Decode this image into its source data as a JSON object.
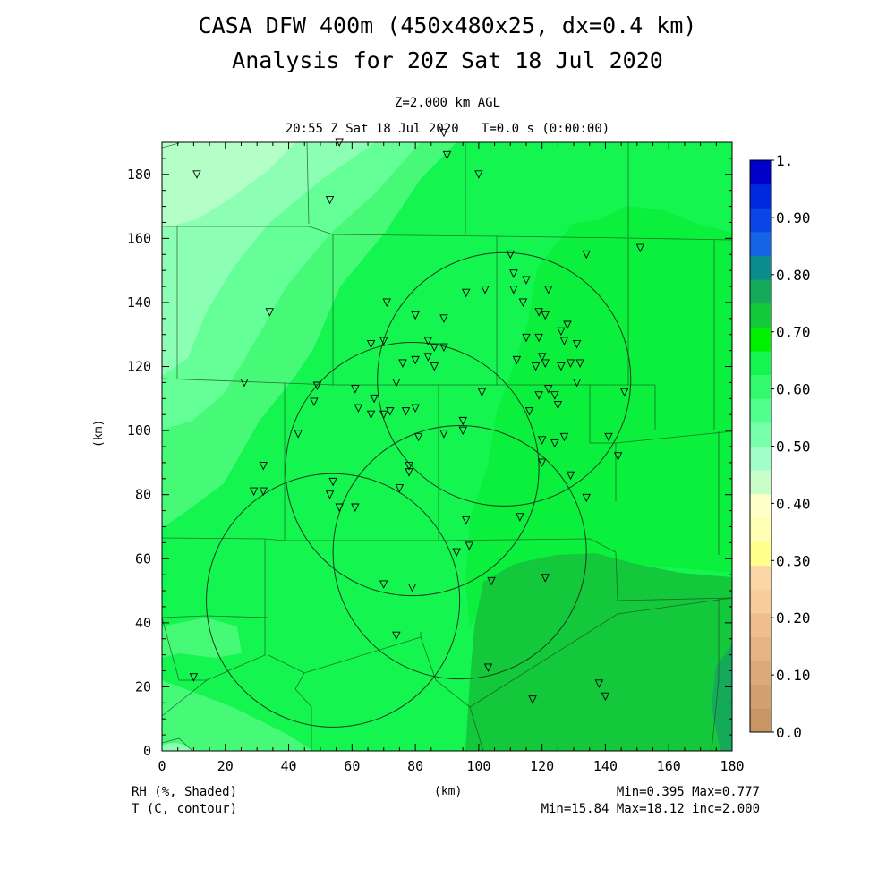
{
  "header": {
    "title_line1": "CASA DFW 400m (450x480x25, dx=0.4 km)",
    "title_line2": "Analysis for 20Z Sat 18 Jul 2020",
    "level": "Z=2.000 km AGL",
    "time": "20:55 Z Sat 18 Jul 2020   T=0.0 s (0:00:00)"
  },
  "axes": {
    "x_label": "(km)",
    "y_label": "(km)",
    "x_ticks": [
      "0",
      "20",
      "40",
      "60",
      "80",
      "100",
      "120",
      "140",
      "160",
      "180"
    ],
    "y_ticks": [
      "0",
      "20",
      "40",
      "60",
      "80",
      "100",
      "120",
      "140",
      "160",
      "180"
    ],
    "x_range": [
      0,
      180
    ],
    "y_range": [
      0,
      190
    ]
  },
  "colorbar": {
    "labels": [
      "1.",
      "0.90",
      "0.80",
      "0.70",
      "0.60",
      "0.50",
      "0.40",
      "0.30",
      "0.20",
      "0.10",
      "0.0"
    ],
    "colors": [
      "#c89664",
      "#d2a06e",
      "#dcaa78",
      "#e6b482",
      "#f0be8c",
      "#f8cd9b",
      "#fbd7a5",
      "#ffff8c",
      "#ffffb4",
      "#ffffc8",
      "#c8ffc8",
      "#a0ffc8",
      "#78ffaa",
      "#50ff8c",
      "#32fa6e",
      "#14f550",
      "#00f000",
      "#14c83c",
      "#14aa5a",
      "#0a8c8c",
      "#1464e6",
      "#0a46e6",
      "#0028dc",
      "#0000c8"
    ]
  },
  "footer": {
    "left1": "RH (%, Shaded)",
    "left2": "T (C, contour)",
    "center": "(km)",
    "right1": "Min=0.395 Max=0.777",
    "right2": "Min=15.84 Max=18.12 inc=2.000"
  },
  "field_colors": {
    "rh_040": "#b4ffc8",
    "rh_045": "#8cffb4",
    "rh_050": "#64ff96",
    "rh_055": "#46fa78",
    "rh_060": "#14f550",
    "rh_065": "#0af03c",
    "rh_070": "#14c83c",
    "rh_075": "#14aa5a"
  },
  "radar_circles_km": [
    {
      "cx": 54,
      "cy": 47,
      "r": 40
    },
    {
      "cx": 79,
      "cy": 88,
      "r": 40
    },
    {
      "cx": 94,
      "cy": 62,
      "r": 40
    },
    {
      "cx": 108,
      "cy": 116,
      "r": 40
    }
  ],
  "stations_km": [
    [
      11,
      180
    ],
    [
      56,
      190
    ],
    [
      89,
      193
    ],
    [
      90,
      186
    ],
    [
      53,
      172
    ],
    [
      100,
      180
    ],
    [
      34,
      137
    ],
    [
      26,
      115
    ],
    [
      71,
      140
    ],
    [
      110,
      155
    ],
    [
      111,
      149
    ],
    [
      115,
      147
    ],
    [
      102,
      144
    ],
    [
      111,
      144
    ],
    [
      122,
      144
    ],
    [
      134,
      155
    ],
    [
      151,
      157
    ],
    [
      96,
      143
    ],
    [
      80,
      136
    ],
    [
      89,
      135
    ],
    [
      114,
      140
    ],
    [
      119,
      137
    ],
    [
      121,
      136
    ],
    [
      128,
      133
    ],
    [
      126,
      131
    ],
    [
      66,
      127
    ],
    [
      70,
      128
    ],
    [
      84,
      128
    ],
    [
      86,
      126
    ],
    [
      89,
      126
    ],
    [
      115,
      129
    ],
    [
      119,
      129
    ],
    [
      127,
      128
    ],
    [
      131,
      127
    ],
    [
      84,
      123
    ],
    [
      76,
      121
    ],
    [
      80,
      122
    ],
    [
      86,
      120
    ],
    [
      112,
      122
    ],
    [
      118,
      120
    ],
    [
      120,
      123
    ],
    [
      121,
      121
    ],
    [
      126,
      120
    ],
    [
      129,
      121
    ],
    [
      132,
      121
    ],
    [
      61,
      113
    ],
    [
      67,
      110
    ],
    [
      74,
      115
    ],
    [
      131,
      115
    ],
    [
      122,
      113
    ],
    [
      119,
      111
    ],
    [
      146,
      112
    ],
    [
      49,
      114
    ],
    [
      101,
      112
    ],
    [
      124,
      111
    ],
    [
      125,
      108
    ],
    [
      48,
      109
    ],
    [
      62,
      107
    ],
    [
      66,
      105
    ],
    [
      70,
      105
    ],
    [
      72,
      106
    ],
    [
      77,
      106
    ],
    [
      80,
      107
    ],
    [
      116,
      106
    ],
    [
      95,
      103
    ],
    [
      43,
      99
    ],
    [
      81,
      98
    ],
    [
      89,
      99
    ],
    [
      95,
      100
    ],
    [
      120,
      97
    ],
    [
      124,
      96
    ],
    [
      127,
      98
    ],
    [
      141,
      98
    ],
    [
      144,
      92
    ],
    [
      32,
      89
    ],
    [
      78,
      89
    ],
    [
      78,
      87
    ],
    [
      120,
      90
    ],
    [
      129,
      86
    ],
    [
      29,
      81
    ],
    [
      32,
      81
    ],
    [
      53,
      80
    ],
    [
      54,
      84
    ],
    [
      75,
      82
    ],
    [
      134,
      79
    ],
    [
      56,
      76
    ],
    [
      61,
      76
    ],
    [
      96,
      72
    ],
    [
      113,
      73
    ],
    [
      97,
      64
    ],
    [
      93,
      62
    ],
    [
      121,
      54
    ],
    [
      104,
      53
    ],
    [
      70,
      52
    ],
    [
      79,
      51
    ],
    [
      74,
      36
    ],
    [
      103,
      26
    ],
    [
      10,
      23
    ],
    [
      138,
      21
    ],
    [
      140,
      17
    ],
    [
      117,
      16
    ]
  ]
}
